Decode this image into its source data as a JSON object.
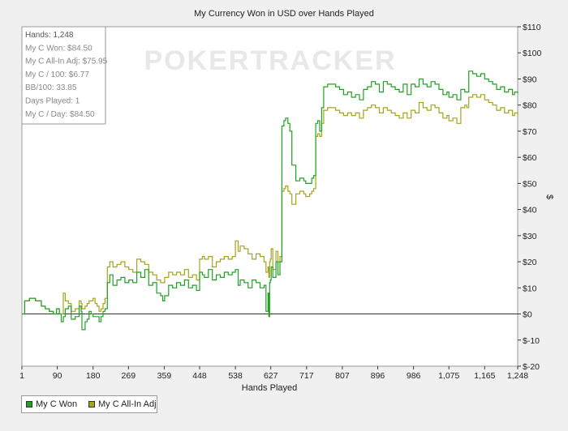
{
  "chart_data": {
    "type": "line",
    "title": "My Currency Won in USD over Hands Played",
    "xlabel": "Hands Played",
    "ylabel": "$",
    "xlim": [
      1,
      1248
    ],
    "ylim": [
      -20,
      110
    ],
    "x_ticks": [
      {
        "value": 1,
        "label": "1"
      },
      {
        "value": 90,
        "label": "90"
      },
      {
        "value": 180,
        "label": "180"
      },
      {
        "value": 269,
        "label": "269"
      },
      {
        "value": 359,
        "label": "359"
      },
      {
        "value": 448,
        "label": "448"
      },
      {
        "value": 538,
        "label": "538"
      },
      {
        "value": 627,
        "label": "627"
      },
      {
        "value": 717,
        "label": "717"
      },
      {
        "value": 807,
        "label": "807"
      },
      {
        "value": 896,
        "label": "896"
      },
      {
        "value": 986,
        "label": "986"
      },
      {
        "value": 1075,
        "label": "1,075"
      },
      {
        "value": 1165,
        "label": "1,165"
      },
      {
        "value": 1248,
        "label": "1,248"
      }
    ],
    "y_ticks": [
      {
        "value": 110,
        "label": "$110"
      },
      {
        "value": 100,
        "label": "$100"
      },
      {
        "value": 90,
        "label": "$90"
      },
      {
        "value": 80,
        "label": "$80"
      },
      {
        "value": 70,
        "label": "$70"
      },
      {
        "value": 60,
        "label": "$60"
      },
      {
        "value": 50,
        "label": "$50"
      },
      {
        "value": 40,
        "label": "$40"
      },
      {
        "value": 30,
        "label": "$30"
      },
      {
        "value": 20,
        "label": "$20"
      },
      {
        "value": 10,
        "label": "$10"
      },
      {
        "value": 0,
        "label": "$0"
      },
      {
        "value": -10,
        "label": "$-10"
      },
      {
        "value": -20,
        "label": "$-20"
      }
    ],
    "grid": false,
    "legend_position": "bottom-left",
    "series": [
      {
        "name": "My C Won",
        "color": "#22a024",
        "x": [
          1,
          8,
          20,
          35,
          50,
          60,
          70,
          80,
          88,
          95,
          100,
          105,
          110,
          118,
          125,
          135,
          145,
          150,
          152,
          160,
          165,
          170,
          175,
          180,
          185,
          190,
          195,
          200,
          205,
          210,
          216,
          222,
          230,
          240,
          250,
          260,
          270,
          280,
          290,
          300,
          310,
          320,
          330,
          340,
          350,
          355,
          360,
          370,
          380,
          390,
          400,
          410,
          420,
          430,
          440,
          448,
          455,
          460,
          470,
          480,
          490,
          500,
          510,
          520,
          530,
          538,
          545,
          550,
          560,
          570,
          580,
          590,
          600,
          610,
          615,
          620,
          622,
          624,
          626,
          628,
          632,
          640,
          645,
          650,
          655,
          660,
          664,
          670,
          675,
          680,
          690,
          700,
          710,
          715,
          720,
          725,
          730,
          735,
          740,
          745,
          750,
          755,
          760,
          770,
          780,
          790,
          800,
          810,
          820,
          830,
          840,
          850,
          860,
          870,
          880,
          890,
          900,
          910,
          920,
          930,
          940,
          950,
          960,
          970,
          980,
          990,
          1000,
          1010,
          1020,
          1030,
          1040,
          1050,
          1060,
          1070,
          1075,
          1085,
          1095,
          1105,
          1115,
          1120,
          1125,
          1135,
          1145,
          1155,
          1165,
          1175,
          1185,
          1195,
          1205,
          1215,
          1225,
          1235,
          1240,
          1248
        ],
        "y": [
          0,
          5,
          6,
          5,
          3,
          2,
          1,
          0,
          2,
          0,
          -3,
          -1,
          2,
          3,
          -2,
          -1,
          3,
          1,
          -6,
          -3,
          -2,
          1,
          0,
          -1,
          -1,
          -1,
          -3,
          -1,
          1,
          2,
          12,
          15,
          11,
          13,
          14,
          12,
          13,
          12,
          16,
          14,
          17,
          11,
          12,
          8,
          7,
          5,
          7,
          11,
          10,
          12,
          11,
          13,
          10,
          11,
          9,
          16,
          15,
          14,
          17,
          13,
          15,
          14,
          16,
          15,
          16,
          17,
          11,
          13,
          12,
          10,
          13,
          12,
          10,
          11,
          1,
          8,
          -1,
          12,
          13,
          18,
          14,
          20,
          15,
          20,
          72,
          74,
          75,
          73,
          70,
          57,
          51,
          52,
          51,
          50,
          50,
          50,
          52,
          53,
          73,
          74,
          70,
          79,
          87,
          88,
          88,
          87,
          86,
          84,
          85,
          83,
          84,
          82,
          86,
          87,
          89,
          88,
          85,
          89,
          88,
          87,
          86,
          85,
          88,
          84,
          88,
          87,
          90,
          88,
          87,
          89,
          88,
          86,
          84,
          85,
          83,
          84,
          82,
          86,
          85,
          85,
          93,
          92,
          91,
          92,
          90,
          89,
          88,
          86,
          87,
          85,
          86,
          84,
          85,
          84.5
        ]
      },
      {
        "name": "My C All-In Adj",
        "color": "#a6a41b",
        "x": [
          1,
          8,
          20,
          35,
          50,
          60,
          70,
          80,
          88,
          95,
          100,
          105,
          110,
          118,
          125,
          135,
          145,
          150,
          152,
          160,
          165,
          170,
          175,
          180,
          185,
          190,
          195,
          200,
          205,
          210,
          216,
          222,
          230,
          240,
          250,
          260,
          270,
          280,
          290,
          300,
          310,
          320,
          330,
          340,
          350,
          355,
          360,
          370,
          380,
          390,
          400,
          410,
          420,
          430,
          440,
          448,
          455,
          460,
          470,
          480,
          490,
          500,
          510,
          520,
          530,
          538,
          545,
          550,
          560,
          570,
          580,
          590,
          600,
          610,
          615,
          620,
          622,
          624,
          626,
          628,
          632,
          640,
          645,
          650,
          655,
          660,
          664,
          670,
          675,
          680,
          690,
          700,
          710,
          715,
          720,
          725,
          730,
          735,
          740,
          745,
          750,
          755,
          760,
          770,
          780,
          790,
          800,
          810,
          820,
          830,
          840,
          850,
          860,
          870,
          880,
          890,
          900,
          910,
          920,
          930,
          940,
          950,
          960,
          970,
          980,
          990,
          1000,
          1010,
          1020,
          1030,
          1040,
          1050,
          1060,
          1070,
          1075,
          1085,
          1095,
          1105,
          1115,
          1120,
          1125,
          1135,
          1145,
          1155,
          1165,
          1175,
          1185,
          1195,
          1205,
          1215,
          1225,
          1235,
          1240,
          1248
        ],
        "y": [
          0,
          5,
          6,
          5,
          3,
          2,
          1,
          0,
          2,
          0,
          0,
          8,
          5,
          4,
          1,
          2,
          5,
          4,
          2,
          3,
          4,
          5,
          5,
          6,
          4,
          3,
          1,
          2,
          4,
          6,
          18,
          20,
          18,
          19,
          20,
          18,
          17,
          16,
          21,
          20,
          19,
          16,
          15,
          13,
          12,
          12,
          14,
          16,
          15,
          16,
          15,
          17,
          14,
          15,
          13,
          21,
          22,
          21,
          22,
          18,
          20,
          21,
          22,
          21,
          22,
          28,
          24,
          26,
          25,
          23,
          21,
          23,
          22,
          20,
          16,
          18,
          14,
          20,
          21,
          25,
          17,
          24,
          20,
          22,
          47,
          48,
          49,
          47,
          46,
          42,
          46,
          47,
          46,
          45,
          45,
          46,
          47,
          48,
          68,
          69,
          68,
          73,
          78,
          79,
          79,
          78,
          77,
          76,
          77,
          76,
          77,
          75,
          78,
          79,
          80,
          79,
          77,
          79,
          78,
          77,
          76,
          75,
          77,
          75,
          78,
          77,
          81,
          79,
          78,
          80,
          79,
          77,
          75,
          76,
          74,
          75,
          73,
          79,
          80,
          79,
          83,
          84,
          83,
          84,
          82,
          81,
          80,
          78,
          79,
          77,
          78,
          76,
          77,
          75.95
        ]
      }
    ],
    "annotations": [
      "Hands: 1,248",
      "My C Won: $84.50",
      "My C All-In Adj: $75.95",
      "My C / 100: $6.77",
      "BB/100: 33.85",
      "Days Played: 1",
      "My C / Day: $84.50"
    ],
    "watermark": "POKERTRACKER"
  }
}
